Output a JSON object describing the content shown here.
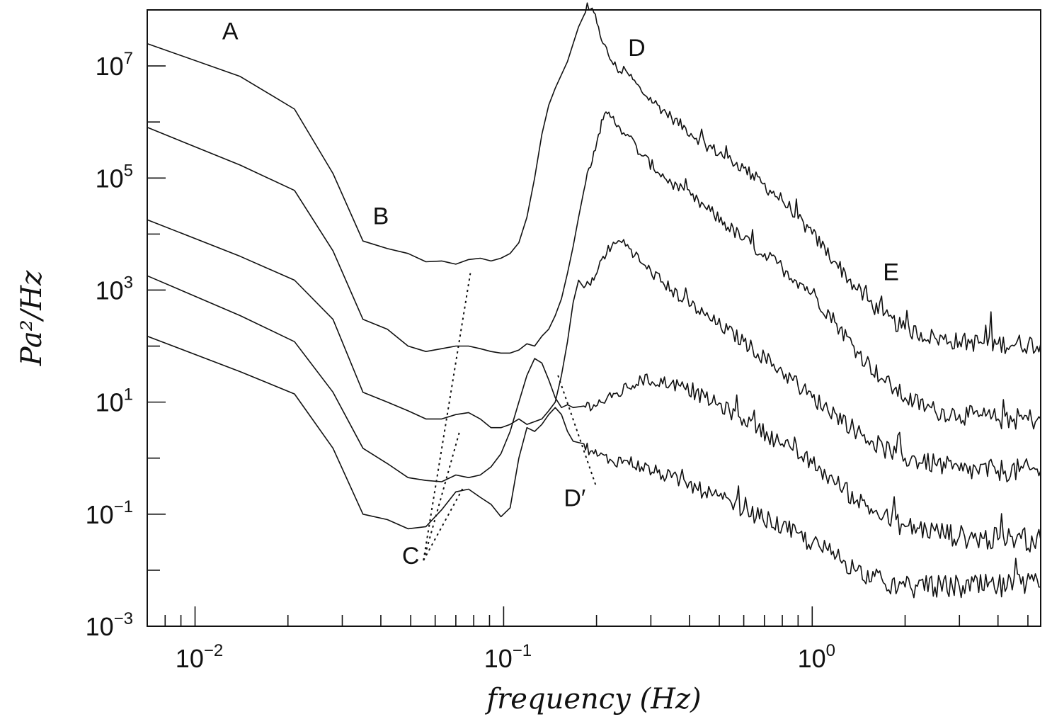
{
  "chart_data": {
    "type": "line",
    "title": "",
    "xlabel": "frequency (Hz)",
    "ylabel": "Pa²/Hz",
    "xscale": "log",
    "yscale": "log",
    "xlim": [
      0.007,
      5.5
    ],
    "ylim": [
      0.001,
      100000000
    ],
    "grid": false,
    "legend": "none",
    "line_color": "#111111",
    "x_ticks": [
      {
        "value": 0.01,
        "base": "10",
        "exp": "−2"
      },
      {
        "value": 0.1,
        "base": "10",
        "exp": "−1"
      },
      {
        "value": 1,
        "base": "10",
        "exp": "0"
      }
    ],
    "y_ticks": [
      {
        "value": 0.001,
        "base": "10",
        "exp": "−3"
      },
      {
        "value": 0.1,
        "base": "10",
        "exp": "−1"
      },
      {
        "value": 10,
        "base": "10",
        "exp": "1"
      },
      {
        "value": 1000,
        "base": "10",
        "exp": "3"
      },
      {
        "value": 100000,
        "base": "10",
        "exp": "5"
      },
      {
        "value": 10000000,
        "base": "10",
        "exp": "7"
      }
    ],
    "series": [
      {
        "points": [
          [
            0.007,
            25000000
          ],
          [
            0.014,
            6500000
          ],
          [
            0.021,
            1700000
          ],
          [
            0.028,
            120000
          ],
          [
            0.035,
            7500
          ],
          [
            0.042,
            5500
          ],
          [
            0.049,
            4500
          ],
          [
            0.056,
            3200
          ],
          [
            0.063,
            3300
          ],
          [
            0.07,
            2900
          ],
          [
            0.077,
            3500
          ],
          [
            0.084,
            3700
          ],
          [
            0.091,
            3300
          ],
          [
            0.098,
            3700
          ],
          [
            0.105,
            4500
          ],
          [
            0.112,
            7000
          ],
          [
            0.119,
            20000
          ],
          [
            0.126,
            100000
          ],
          [
            0.133,
            600000
          ],
          [
            0.14,
            2000000
          ],
          [
            0.147,
            4000000
          ],
          [
            0.154,
            7000000
          ],
          [
            0.161,
            12000000
          ],
          [
            0.168,
            25000000
          ],
          [
            0.175,
            50000000
          ],
          [
            0.182,
            80000000
          ],
          [
            0.189,
            100000000
          ],
          [
            0.196,
            90000000
          ],
          [
            0.203,
            50000000
          ],
          [
            0.21,
            25000000
          ],
          [
            0.224,
            12000000
          ],
          [
            0.238,
            8000000
          ],
          [
            0.252,
            7500000
          ],
          [
            0.28,
            3500000
          ],
          [
            0.35,
            1200000
          ],
          [
            0.45,
            400000
          ],
          [
            0.6,
            150000
          ],
          [
            0.8,
            40000
          ],
          [
            1.0,
            10000
          ],
          [
            1.2,
            3000
          ],
          [
            1.4,
            1000
          ],
          [
            1.7,
            350
          ],
          [
            2.0,
            200
          ],
          [
            2.5,
            140
          ],
          [
            3.0,
            120
          ],
          [
            4.0,
            110
          ],
          [
            5.5,
            110
          ]
        ],
        "noise": 0.12
      },
      {
        "points": [
          [
            0.007,
            800000
          ],
          [
            0.014,
            170000
          ],
          [
            0.021,
            60000
          ],
          [
            0.028,
            5000
          ],
          [
            0.035,
            300
          ],
          [
            0.042,
            200
          ],
          [
            0.049,
            100
          ],
          [
            0.056,
            80
          ],
          [
            0.063,
            90
          ],
          [
            0.07,
            100
          ],
          [
            0.077,
            100
          ],
          [
            0.084,
            90
          ],
          [
            0.091,
            80
          ],
          [
            0.098,
            75
          ],
          [
            0.105,
            75
          ],
          [
            0.112,
            85
          ],
          [
            0.119,
            110
          ],
          [
            0.126,
            100
          ],
          [
            0.133,
            150
          ],
          [
            0.14,
            200
          ],
          [
            0.147,
            350
          ],
          [
            0.154,
            700
          ],
          [
            0.161,
            2000
          ],
          [
            0.168,
            6000
          ],
          [
            0.175,
            20000
          ],
          [
            0.182,
            60000
          ],
          [
            0.189,
            150000
          ],
          [
            0.196,
            300000
          ],
          [
            0.203,
            600000
          ],
          [
            0.21,
            1100000
          ],
          [
            0.217,
            1400000
          ],
          [
            0.224,
            1200000
          ],
          [
            0.238,
            800000
          ],
          [
            0.252,
            600000
          ],
          [
            0.28,
            250000
          ],
          [
            0.35,
            80000
          ],
          [
            0.45,
            30000
          ],
          [
            0.6,
            8000
          ],
          [
            0.8,
            2500
          ],
          [
            1.0,
            900
          ],
          [
            1.2,
            250
          ],
          [
            1.4,
            80
          ],
          [
            1.7,
            25
          ],
          [
            2.0,
            12
          ],
          [
            2.5,
            7
          ],
          [
            3.0,
            6
          ],
          [
            4.0,
            5
          ],
          [
            5.5,
            5
          ]
        ],
        "noise": 0.13
      },
      {
        "points": [
          [
            0.007,
            18000
          ],
          [
            0.014,
            4000
          ],
          [
            0.021,
            1500
          ],
          [
            0.028,
            300
          ],
          [
            0.035,
            15
          ],
          [
            0.042,
            10
          ],
          [
            0.049,
            7
          ],
          [
            0.056,
            5
          ],
          [
            0.063,
            5
          ],
          [
            0.07,
            6
          ],
          [
            0.077,
            6.5
          ],
          [
            0.084,
            5
          ],
          [
            0.091,
            3.5
          ],
          [
            0.098,
            3.5
          ],
          [
            0.105,
            4
          ],
          [
            0.112,
            5
          ],
          [
            0.119,
            4
          ],
          [
            0.126,
            4.5
          ],
          [
            0.133,
            5
          ],
          [
            0.14,
            7
          ],
          [
            0.147,
            10
          ],
          [
            0.154,
            30
          ],
          [
            0.161,
            120
          ],
          [
            0.168,
            600
          ],
          [
            0.175,
            1500
          ],
          [
            0.182,
            1100
          ],
          [
            0.189,
            1300
          ],
          [
            0.196,
            1500
          ],
          [
            0.203,
            2500
          ],
          [
            0.21,
            4000
          ],
          [
            0.224,
            6000
          ],
          [
            0.238,
            7500
          ],
          [
            0.252,
            6500
          ],
          [
            0.28,
            3000
          ],
          [
            0.35,
            1000
          ],
          [
            0.45,
            350
          ],
          [
            0.6,
            120
          ],
          [
            0.8,
            35
          ],
          [
            1.0,
            12
          ],
          [
            1.2,
            6
          ],
          [
            1.4,
            3
          ],
          [
            1.7,
            1.5
          ],
          [
            2.0,
            1
          ],
          [
            2.5,
            0.8
          ],
          [
            3.0,
            0.6
          ],
          [
            4.0,
            0.6
          ],
          [
            5.5,
            0.6
          ]
        ],
        "noise": 0.14
      },
      {
        "points": [
          [
            0.007,
            1800
          ],
          [
            0.014,
            350
          ],
          [
            0.021,
            120
          ],
          [
            0.028,
            15
          ],
          [
            0.035,
            1.5
          ],
          [
            0.042,
            0.8
          ],
          [
            0.049,
            0.45
          ],
          [
            0.056,
            0.4
          ],
          [
            0.063,
            0.38
          ],
          [
            0.07,
            0.5
          ],
          [
            0.077,
            0.45
          ],
          [
            0.084,
            0.5
          ],
          [
            0.091,
            0.7
          ],
          [
            0.098,
            1.2
          ],
          [
            0.105,
            3
          ],
          [
            0.112,
            10
          ],
          [
            0.119,
            30
          ],
          [
            0.126,
            60
          ],
          [
            0.133,
            50
          ],
          [
            0.14,
            25
          ],
          [
            0.147,
            12
          ],
          [
            0.154,
            8
          ],
          [
            0.161,
            9
          ],
          [
            0.168,
            8
          ],
          [
            0.182,
            8.5
          ],
          [
            0.196,
            9
          ],
          [
            0.224,
            12
          ],
          [
            0.252,
            18
          ],
          [
            0.28,
            25
          ],
          [
            0.35,
            22
          ],
          [
            0.45,
            12
          ],
          [
            0.6,
            5
          ],
          [
            0.8,
            1.8
          ],
          [
            1.0,
            0.8
          ],
          [
            1.2,
            0.35
          ],
          [
            1.4,
            0.18
          ],
          [
            1.7,
            0.09
          ],
          [
            2.0,
            0.06
          ],
          [
            2.5,
            0.05
          ],
          [
            3.0,
            0.04
          ],
          [
            4.0,
            0.035
          ],
          [
            5.5,
            0.035
          ]
        ],
        "noise": 0.15
      },
      {
        "points": [
          [
            0.007,
            150
          ],
          [
            0.014,
            35
          ],
          [
            0.021,
            14
          ],
          [
            0.028,
            1.5
          ],
          [
            0.035,
            0.1
          ],
          [
            0.042,
            0.08
          ],
          [
            0.049,
            0.055
          ],
          [
            0.056,
            0.06
          ],
          [
            0.063,
            0.12
          ],
          [
            0.07,
            0.25
          ],
          [
            0.077,
            0.28
          ],
          [
            0.084,
            0.2
          ],
          [
            0.091,
            0.15
          ],
          [
            0.098,
            0.09
          ],
          [
            0.105,
            0.13
          ],
          [
            0.112,
            1
          ],
          [
            0.119,
            3.5
          ],
          [
            0.126,
            3
          ],
          [
            0.133,
            4
          ],
          [
            0.14,
            6
          ],
          [
            0.147,
            8
          ],
          [
            0.154,
            6
          ],
          [
            0.161,
            3
          ],
          [
            0.168,
            2
          ],
          [
            0.182,
            1.8
          ],
          [
            0.196,
            1.2
          ],
          [
            0.224,
            0.9
          ],
          [
            0.252,
            0.9
          ],
          [
            0.28,
            0.7
          ],
          [
            0.35,
            0.45
          ],
          [
            0.45,
            0.25
          ],
          [
            0.6,
            0.12
          ],
          [
            0.8,
            0.06
          ],
          [
            1.0,
            0.03
          ],
          [
            1.2,
            0.018
          ],
          [
            1.4,
            0.01
          ],
          [
            1.7,
            0.006
          ],
          [
            2.0,
            0.005
          ],
          [
            2.5,
            0.005
          ],
          [
            3.0,
            0.005
          ],
          [
            4.0,
            0.005
          ],
          [
            5.5,
            0.005
          ]
        ],
        "noise": 0.16
      }
    ],
    "annotations": [
      {
        "text": "A",
        "x": 0.013,
        "y": 30000000
      },
      {
        "text": "B",
        "x": 0.04,
        "y": 15000
      },
      {
        "text": "C",
        "x": 0.05,
        "y": 0.013
      },
      {
        "text": "D",
        "x": 0.27,
        "y": 15000000
      },
      {
        "text": "D′",
        "x": 0.17,
        "y": 0.14
      },
      {
        "text": "E",
        "x": 1.8,
        "y": 1500
      }
    ],
    "reference_lines": [
      {
        "style": "dotted",
        "points": [
          [
            0.055,
            0.015
          ],
          [
            0.078,
            2000
          ]
        ]
      },
      {
        "style": "dotted",
        "points": [
          [
            0.055,
            0.015
          ],
          [
            0.072,
            3
          ]
        ]
      },
      {
        "style": "dotted",
        "points": [
          [
            0.055,
            0.015
          ],
          [
            0.074,
            0.3
          ]
        ]
      },
      {
        "style": "dotted",
        "points": [
          [
            0.15,
            30
          ],
          [
            0.2,
            0.3
          ]
        ]
      }
    ]
  }
}
